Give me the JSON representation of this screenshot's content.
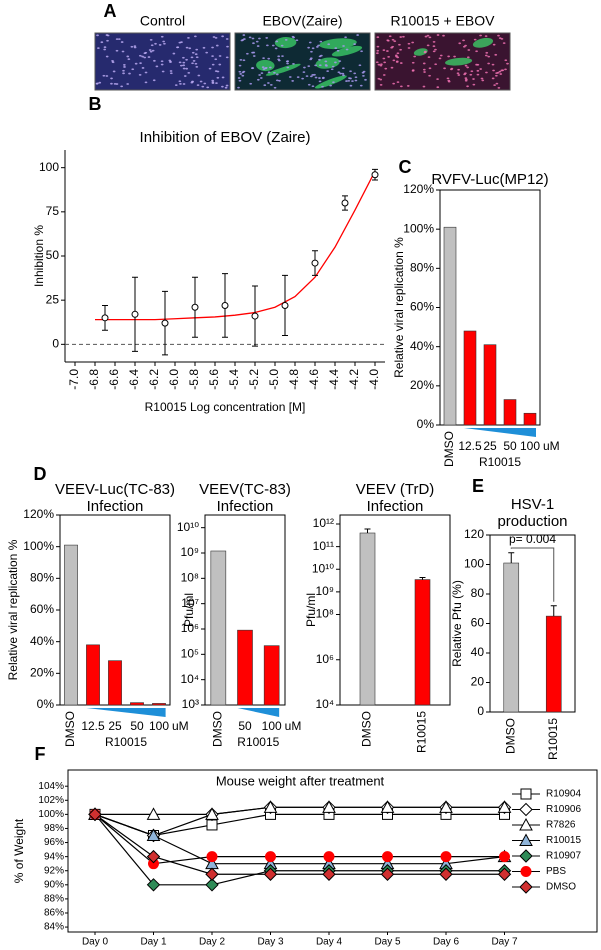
{
  "chart_data": [
    {
      "type": "image",
      "panel": "A",
      "categories": [
        "Control",
        "EBOV(Zaire)",
        "R10015 + EBOV"
      ]
    },
    {
      "type": "scatter",
      "panel": "B",
      "title": "Inhibition of EBOV (Zaire)",
      "x_label": "R10015 Log concentration [M]",
      "y_label": "Inhibition %",
      "x": [
        -6.7,
        -6.4,
        -6.1,
        -5.8,
        -5.5,
        -5.2,
        -4.9,
        -4.6,
        -4.3,
        -4.0
      ],
      "values": [
        15,
        17,
        12,
        21,
        22,
        16,
        22,
        46,
        80,
        96
      ],
      "errors": [
        7,
        21,
        18,
        17,
        18,
        17,
        17,
        7,
        4,
        3
      ],
      "color": "#000000",
      "fit": {
        "x": [
          -6.8,
          -6.6,
          -6.4,
          -6.2,
          -6.0,
          -5.8,
          -5.6,
          -5.4,
          -5.2,
          -5.0,
          -4.8,
          -4.6,
          -4.4,
          -4.2,
          -4.0
        ],
        "values": [
          14,
          14,
          14,
          14,
          14.5,
          15,
          15.5,
          16.5,
          18,
          21,
          27,
          38,
          55,
          76,
          98
        ],
        "color": "#ff0000"
      },
      "reference_line": 0,
      "xlim": [
        -7.1,
        -3.9
      ],
      "xticks": [
        {
          "value": -7,
          "label": "-7.0"
        },
        -6.8,
        -6.6,
        -6.4,
        -6.2,
        {
          "value": -6,
          "label": "-6.0"
        },
        -5.8,
        -5.6,
        -5.4,
        -5.2,
        {
          "value": -5,
          "label": "-5.0"
        },
        -4.8,
        -4.6,
        -4.4,
        -4.2,
        {
          "value": -4,
          "label": "-4.0"
        }
      ],
      "ylim": [
        -10,
        110
      ],
      "yticks": [
        0,
        25,
        50,
        75,
        100
      ]
    },
    {
      "type": "bar",
      "panel": "C",
      "title": "RVFV-Luc(MP12)",
      "y_label": "Relative viral replication %",
      "categories": [
        "DMSO",
        "12.5",
        "25",
        "50",
        "100"
      ],
      "values": [
        101,
        48,
        41,
        13,
        6
      ],
      "colors": [
        "#c0c0c0",
        "#ff0000",
        "#ff0000",
        "#ff0000",
        "#ff0000"
      ],
      "group_label": "R10015",
      "unit": "uM",
      "wedge_color": "#1e8fd8",
      "ylim": [
        0,
        120
      ],
      "yticks": [
        {
          "value": 0,
          "label": "0%"
        },
        {
          "value": 20,
          "label": "20%"
        },
        {
          "value": 40,
          "label": "40%"
        },
        {
          "value": 60,
          "label": "60%"
        },
        {
          "value": 80,
          "label": "80%"
        },
        {
          "value": 100,
          "label": "100%"
        },
        {
          "value": 120,
          "label": "120%"
        }
      ]
    },
    {
      "type": "bar",
      "panel": "D",
      "title": [
        "VEEV-Luc(TC-83)",
        "Infection"
      ],
      "y_label": "Relative viral replication %",
      "categories": [
        "DMSO",
        "12.5",
        "25",
        "50",
        "100"
      ],
      "values": [
        101,
        38,
        28,
        1.5,
        1
      ],
      "colors": [
        "#c0c0c0",
        "#ff0000",
        "#ff0000",
        "#ff0000",
        "#ff0000"
      ],
      "group_label": "R10015",
      "unit": "uM",
      "wedge_color": "#1e8fd8",
      "ylim": [
        0,
        120
      ],
      "yticks": [
        {
          "value": 0,
          "label": "0%"
        },
        {
          "value": 20,
          "label": "20%"
        },
        {
          "value": 40,
          "label": "40%"
        },
        {
          "value": 60,
          "label": "60%"
        },
        {
          "value": 80,
          "label": "80%"
        },
        {
          "value": 100,
          "label": "100%"
        },
        {
          "value": 120,
          "label": "120%"
        }
      ]
    },
    {
      "type": "bar",
      "title": [
        "VEEV(TC-83)",
        "Infection"
      ],
      "y_label": "Pfu/ml",
      "log_y": true,
      "categories": [
        "DMSO",
        "50",
        "100"
      ],
      "values": [
        1200000000,
        900000,
        220000
      ],
      "colors": [
        "#c0c0c0",
        "#ff0000",
        "#ff0000"
      ],
      "group_label": "R10015",
      "unit": "uM",
      "wedge_color": "#1e8fd8",
      "ylim": [
        1000,
        31622776601
      ],
      "yticks": [
        {
          "value": 1000,
          "label": "10³"
        },
        {
          "value": 10000,
          "label": "10⁴"
        },
        {
          "value": 100000,
          "label": "10⁵"
        },
        {
          "value": 1000000,
          "label": "10⁶"
        },
        {
          "value": 10000000,
          "label": "10⁷"
        },
        {
          "value": 100000000,
          "label": "10⁸"
        },
        {
          "value": 1000000000,
          "label": "10⁹"
        },
        {
          "value": 10000000000,
          "label": "10¹⁰"
        }
      ]
    },
    {
      "type": "bar",
      "title": [
        "VEEV (TrD)",
        "Infection"
      ],
      "y_label": "Pfu/ml",
      "log_y": true,
      "categories": [
        "DMSO",
        "R10015"
      ],
      "values": [
        400000000000,
        3500000000
      ],
      "errors": [
        200000000000,
        800000000
      ],
      "colors": [
        "#c0c0c0",
        "#ff0000"
      ],
      "ylim": [
        10000,
        2500000000000
      ],
      "yticks": [
        {
          "value": 10000,
          "label": "10⁴"
        },
        {
          "value": 1000000,
          "label": "10⁶"
        },
        {
          "value": 100000000,
          "label": "10⁸"
        },
        {
          "value": 1000000000,
          "label": "10⁹"
        },
        {
          "value": 10000000000,
          "label": "10¹⁰"
        },
        {
          "value": 100000000000,
          "label": "10¹¹"
        },
        {
          "value": 1000000000000,
          "label": "10¹²"
        }
      ]
    },
    {
      "type": "bar",
      "panel": "E",
      "title": [
        "HSV-1",
        "production"
      ],
      "y_label": "Relative Pfu  (%)",
      "categories": [
        "DMSO",
        "R10015"
      ],
      "values": [
        101,
        65
      ],
      "errors": [
        7,
        7
      ],
      "annotation": "p= 0.004",
      "colors": [
        "#c0c0c0",
        "#ff0000"
      ],
      "ylim": [
        0,
        120
      ],
      "yticks": [
        0,
        20,
        40,
        60,
        80,
        100,
        120
      ]
    },
    {
      "type": "line",
      "panel": "F",
      "title": "Mouse weight after treatment",
      "y_label": "% of Weight",
      "categories": [
        "Day 0",
        "Day 1",
        "Day 2",
        "Day 3",
        "Day 4",
        "Day 5",
        "Day 6",
        "Day 7"
      ],
      "series": [
        {
          "name": "R10904",
          "marker": "square",
          "color": "#ffffff",
          "values": [
            100,
            97,
            98.5,
            100,
            100,
            100,
            100,
            100
          ]
        },
        {
          "name": "R10906",
          "marker": "diamond",
          "color": "#ffffff",
          "values": [
            100,
            97,
            100,
            101,
            101,
            101,
            101,
            101
          ]
        },
        {
          "name": "R7826",
          "marker": "triangle",
          "color": "#ffffff",
          "values": [
            100,
            100,
            100,
            101,
            101,
            101,
            101,
            101
          ]
        },
        {
          "name": "R10015",
          "marker": "triangle",
          "color": "#8fb4d9",
          "values": [
            100,
            97,
            93,
            93,
            93,
            93,
            93,
            94
          ]
        },
        {
          "name": "R10907",
          "marker": "diamond",
          "color": "#2e8b57",
          "values": [
            100,
            90,
            90,
            92,
            92,
            92,
            92,
            92
          ]
        },
        {
          "name": "PBS",
          "marker": "circle",
          "color": "#ff0000",
          "values": [
            100,
            93,
            94,
            94,
            94,
            94,
            94,
            94
          ]
        },
        {
          "name": "DMSO",
          "marker": "diamond",
          "color": "#d03030",
          "values": [
            100,
            94,
            91.5,
            91.5,
            91.5,
            91.5,
            91.5,
            91.5
          ]
        }
      ],
      "ylim": [
        83.3,
        106.3
      ],
      "yticks": [
        {
          "value": 84,
          "label": "84%"
        },
        {
          "value": 86,
          "label": "86%"
        },
        {
          "value": 88,
          "label": "88%"
        },
        {
          "value": 90,
          "label": "90%"
        },
        {
          "value": 92,
          "label": "92%"
        },
        {
          "value": 94,
          "label": "94%"
        },
        {
          "value": 96,
          "label": "96%"
        },
        {
          "value": 98,
          "label": "98%"
        },
        {
          "value": 100,
          "label": "100%"
        },
        {
          "value": 102,
          "label": "102%"
        },
        {
          "value": 104,
          "label": "104%"
        }
      ]
    }
  ]
}
